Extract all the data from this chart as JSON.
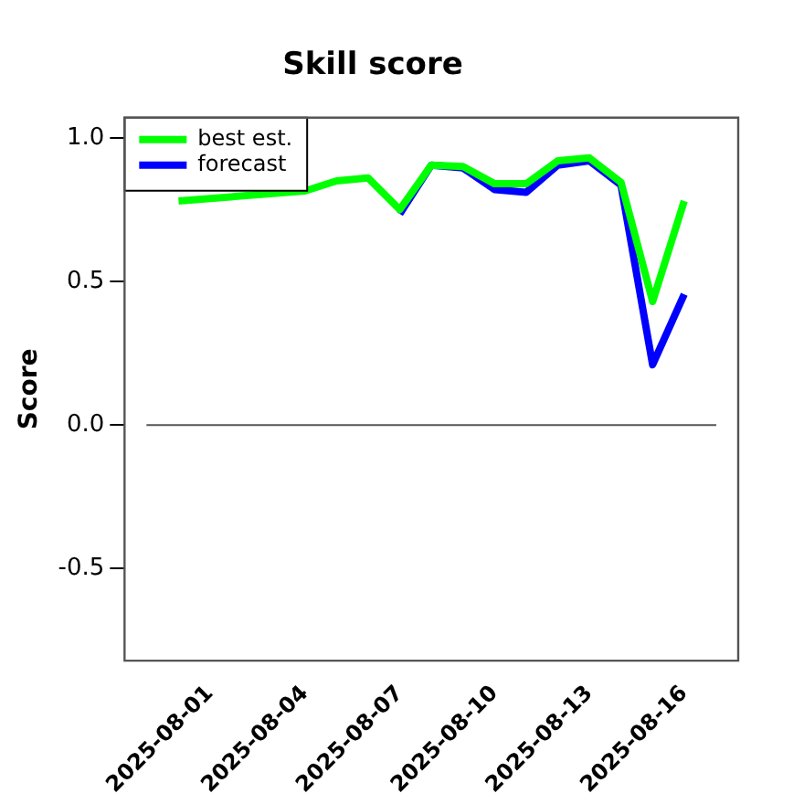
{
  "chart_data": {
    "type": "line",
    "title": "Skill score",
    "ylabel": "Score",
    "x": [
      "2025-07-31",
      "2025-08-01",
      "2025-08-02",
      "2025-08-03",
      "2025-08-04",
      "2025-08-05",
      "2025-08-06",
      "2025-08-07",
      "2025-08-08",
      "2025-08-09",
      "2025-08-10",
      "2025-08-11",
      "2025-08-12",
      "2025-08-13",
      "2025-08-14",
      "2025-08-15",
      "2025-08-16"
    ],
    "series": [
      {
        "name": "best est.",
        "color": "#00ff00",
        "values": [
          0.78,
          null,
          null,
          null,
          0.815,
          0.85,
          0.86,
          0.75,
          0.905,
          0.9,
          0.84,
          0.84,
          0.92,
          0.93,
          0.845,
          0.43,
          0.78
        ]
      },
      {
        "name": "forecast",
        "color": "#0000ff",
        "values": [
          null,
          null,
          null,
          null,
          null,
          null,
          null,
          0.735,
          0.905,
          0.895,
          0.82,
          0.81,
          0.905,
          0.92,
          0.835,
          0.21,
          0.455
        ]
      }
    ],
    "xlim": [
      "2025-07-29T07:00",
      "2025-08-17T17:00"
    ],
    "xticks": [
      "2025-08-01",
      "2025-08-04",
      "2025-08-07",
      "2025-08-10",
      "2025-08-13",
      "2025-08-16"
    ],
    "ylim": [
      -0.82,
      1.07
    ],
    "yticks": [
      {
        "value": -0.5,
        "label": "-0.5"
      },
      {
        "value": 0,
        "label": "0.0"
      },
      {
        "value": 0.5,
        "label": "0.5"
      },
      {
        "value": 1,
        "label": "1.0"
      }
    ],
    "ref_lines": [
      {
        "axis": "y",
        "value": 0,
        "color": "#555555"
      }
    ],
    "grid": false,
    "legend": "top left",
    "marker": "none",
    "line_style": "solid"
  }
}
